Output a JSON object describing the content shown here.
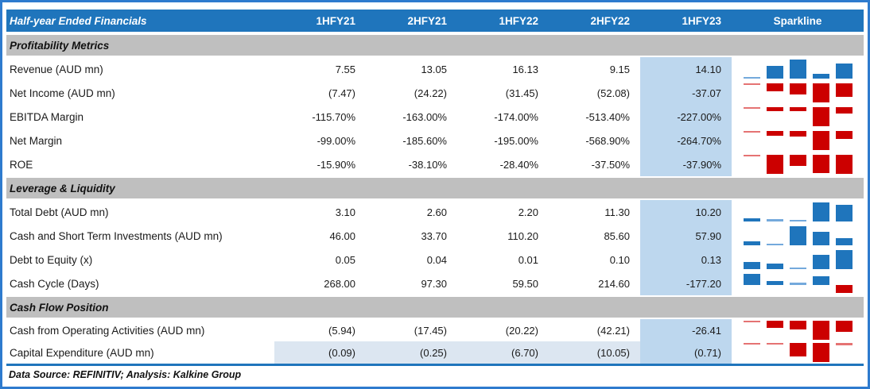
{
  "header": {
    "title": "Half-year Ended Financials",
    "columns": [
      "1HFY21",
      "2HFY21",
      "1HFY22",
      "2HFY22",
      "1HFY23"
    ],
    "sparkline_label": "Sparkline"
  },
  "footer": {
    "text": "Data Source: REFINITIV; Analysis: Kalkine Group"
  },
  "colors": {
    "header_bg": "#1F75BC",
    "section_bg": "#BFBFBF",
    "highlight_column_bg": "#BDD7EE",
    "shaded_row_bg": "#DCE6F1",
    "bar_pos": "#1F75BC",
    "bar_pos_light": "#74A9DC",
    "bar_neg": "#CC0000",
    "bar_neg_light": "#E57373",
    "outer_border": "#2E7BCE",
    "bottom_rule": "#1F75BC"
  },
  "chart_data": {
    "type": "table",
    "title": "Half-year Ended Financials",
    "row_header_column": "Half-year Ended Financials",
    "period_columns": [
      "1HFY21",
      "2HFY21",
      "1HFY22",
      "2HFY22",
      "1HFY23"
    ],
    "sparkline_column": "Sparkline",
    "sparkline_type": "column (blue = positive, red = negative)",
    "highlighted_column": "1HFY23",
    "sections": [
      {
        "title": "Profitability Metrics",
        "rows": [
          {
            "label": "Revenue (AUD mn)",
            "display": [
              "7.55",
              "13.05",
              "16.13",
              "9.15",
              "14.10"
            ],
            "values": [
              7.55,
              13.05,
              16.13,
              9.15,
              14.1
            ]
          },
          {
            "label": "Net Income (AUD mn)",
            "display": [
              "(7.47)",
              "(24.22)",
              "(31.45)",
              "(52.08)",
              "-37.07"
            ],
            "values": [
              -7.47,
              -24.22,
              -31.45,
              -52.08,
              -37.07
            ]
          },
          {
            "label": "EBITDA Margin",
            "display": [
              "-115.70%",
              "-163.00%",
              "-174.00%",
              "-513.40%",
              "-227.00%"
            ],
            "values": [
              -115.7,
              -163.0,
              -174.0,
              -513.4,
              -227.0
            ]
          },
          {
            "label": "Net Margin",
            "display": [
              "-99.00%",
              "-185.60%",
              "-195.00%",
              "-568.90%",
              "-264.70%"
            ],
            "values": [
              -99.0,
              -185.6,
              -195.0,
              -568.9,
              -264.7
            ]
          },
          {
            "label": "ROE",
            "display": [
              "-15.90%",
              "-38.10%",
              "-28.40%",
              "-37.50%",
              "-37.90%"
            ],
            "values": [
              -15.9,
              -38.1,
              -28.4,
              -37.5,
              -37.9
            ]
          }
        ]
      },
      {
        "title": "Leverage & Liquidity",
        "rows": [
          {
            "label": "Total Debt (AUD mn)",
            "display": [
              "3.10",
              "2.60",
              "2.20",
              "11.30",
              "10.20"
            ],
            "values": [
              3.1,
              2.6,
              2.2,
              11.3,
              10.2
            ]
          },
          {
            "label": "Cash and Short Term Investments (AUD mn)",
            "display": [
              "46.00",
              "33.70",
              "110.20",
              "85.60",
              "57.90"
            ],
            "values": [
              46.0,
              33.7,
              110.2,
              85.6,
              57.9
            ]
          },
          {
            "label": "Debt to Equity (x)",
            "display": [
              "0.05",
              "0.04",
              "0.01",
              "0.10",
              "0.13"
            ],
            "values": [
              0.05,
              0.04,
              0.01,
              0.1,
              0.13
            ]
          },
          {
            "label": "Cash Cycle (Days)",
            "display": [
              "268.00",
              "97.30",
              "59.50",
              "214.60",
              "-177.20"
            ],
            "values": [
              268.0,
              97.3,
              59.5,
              214.6,
              -177.2
            ]
          }
        ]
      },
      {
        "title": "Cash Flow Position",
        "rows": [
          {
            "label": "Cash from Operating Activities (AUD mn)",
            "display": [
              "(5.94)",
              "(17.45)",
              "(20.22)",
              "(42.21)",
              "-26.41"
            ],
            "values": [
              -5.94,
              -17.45,
              -20.22,
              -42.21,
              -26.41
            ]
          },
          {
            "label": "Capital Expenditure (AUD mn)",
            "display": [
              "(0.09)",
              "(0.25)",
              "(6.70)",
              "(10.05)",
              "(0.71)"
            ],
            "values": [
              -0.09,
              -0.25,
              -6.7,
              -10.05,
              -0.71
            ],
            "shaded": true
          }
        ]
      }
    ]
  }
}
